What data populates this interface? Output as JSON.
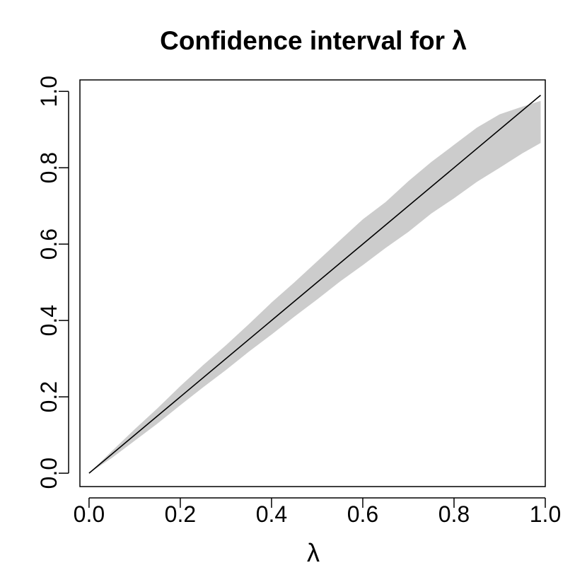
{
  "chart_data": {
    "type": "area",
    "title": "Confidence interval for λ",
    "xlabel": "λ",
    "ylabel": "",
    "xlim": [
      -0.02,
      1.0
    ],
    "ylim": [
      -0.035,
      1.03
    ],
    "grid": false,
    "x_ticks": [
      "0.0",
      "0.2",
      "0.4",
      "0.6",
      "0.8",
      "1.0"
    ],
    "y_ticks": [
      "0.0",
      "0.2",
      "0.4",
      "0.6",
      "0.8",
      "1.0"
    ],
    "colors": {
      "band": "#cccccc",
      "line": "#000000",
      "axis": "#000000"
    },
    "band": {
      "x": [
        0.0,
        0.05,
        0.1,
        0.15,
        0.2,
        0.25,
        0.3,
        0.35,
        0.4,
        0.45,
        0.5,
        0.55,
        0.6,
        0.65,
        0.7,
        0.75,
        0.8,
        0.85,
        0.9,
        0.95,
        0.99
      ],
      "lower": [
        0.0,
        0.04,
        0.085,
        0.13,
        0.178,
        0.225,
        0.27,
        0.318,
        0.363,
        0.41,
        0.455,
        0.502,
        0.545,
        0.59,
        0.632,
        0.68,
        0.72,
        0.763,
        0.8,
        0.838,
        0.865
      ],
      "upper": [
        0.0,
        0.058,
        0.115,
        0.17,
        0.228,
        0.283,
        0.335,
        0.39,
        0.447,
        0.5,
        0.555,
        0.61,
        0.665,
        0.71,
        0.765,
        0.815,
        0.86,
        0.905,
        0.94,
        0.96,
        0.975
      ]
    },
    "line": {
      "x": [
        0.0,
        0.99
      ],
      "y": [
        0.0,
        0.99
      ]
    }
  }
}
